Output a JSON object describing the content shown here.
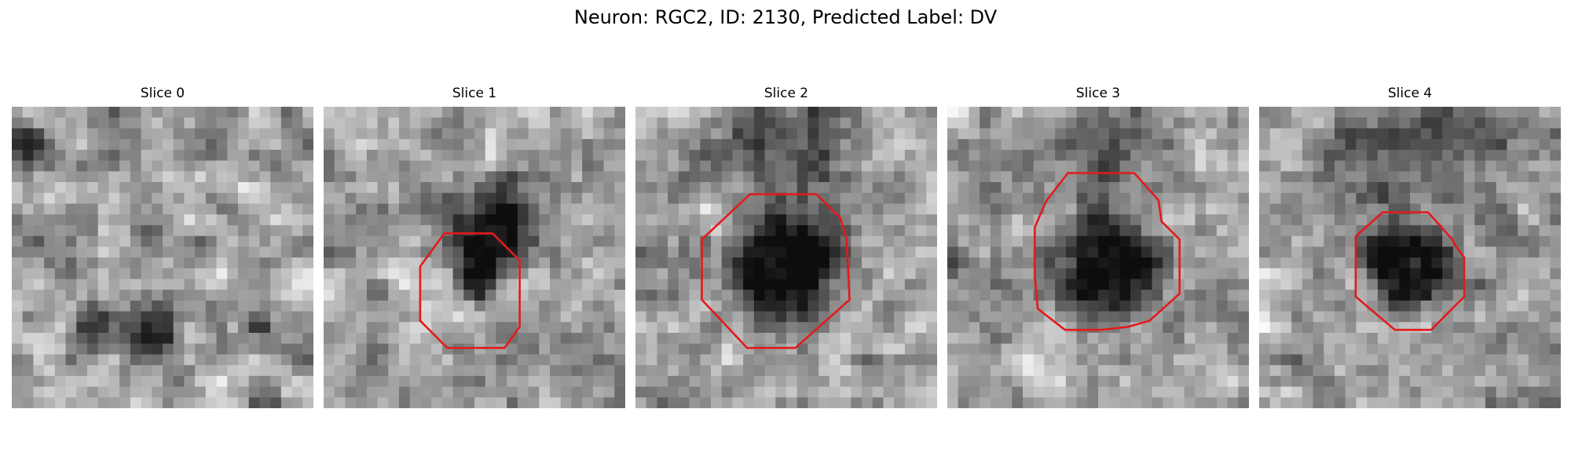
{
  "figure": {
    "title": "Neuron: RGC2, ID: 2130, Predicted Label: DV",
    "contour_color": "#e31a1c"
  },
  "slices": [
    {
      "title": "Slice 0"
    },
    {
      "title": "Slice 1"
    },
    {
      "title": "Slice 2"
    },
    {
      "title": "Slice 3"
    },
    {
      "title": "Slice 4"
    }
  ]
}
